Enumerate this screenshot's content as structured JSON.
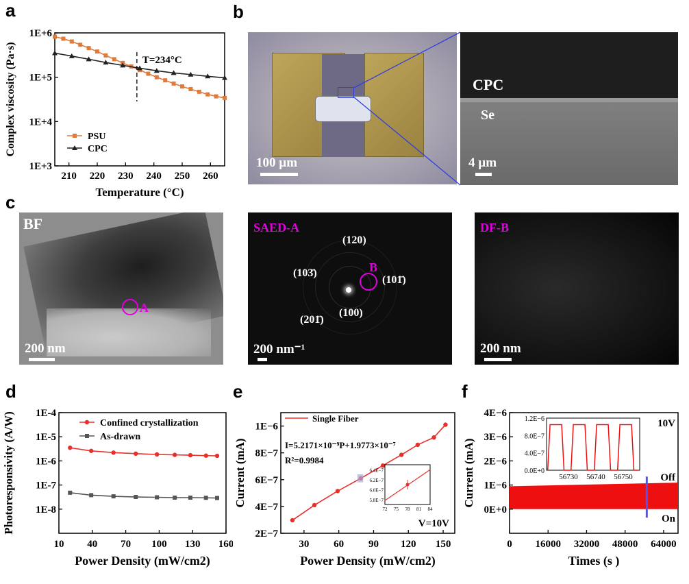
{
  "panels": {
    "a": "a",
    "b": "b",
    "c": "c",
    "d": "d",
    "e": "e",
    "f": "f"
  },
  "chart_data": [
    {
      "panel": "a",
      "type": "line",
      "xlabel": "Temperature (°C)",
      "ylabel": "Complex viscosity (Pa·s)",
      "xlim": [
        205,
        265
      ],
      "ylim_log": [
        1000,
        1000000
      ],
      "log_y": true,
      "x_ticks": [
        "210",
        "220",
        "230",
        "240",
        "250",
        "260"
      ],
      "y_ticks": [
        "1E+3",
        "1E+4",
        "1E+5",
        "1E+6"
      ],
      "annotation": "T=234°C",
      "annotation_x": 234,
      "series": [
        {
          "name": "PSU",
          "color": "#e07b3c",
          "marker": "square",
          "x": [
            205,
            208,
            211,
            214,
            217,
            220,
            223,
            226,
            229,
            232,
            235,
            238,
            241,
            244,
            247,
            250,
            253,
            256,
            259,
            262,
            265
          ],
          "y": [
            820000,
            740000,
            640000,
            540000,
            455000,
            380000,
            310000,
            255000,
            210000,
            175000,
            145000,
            120000,
            100000,
            85000,
            72000,
            62000,
            54000,
            47000,
            41000,
            37000,
            34000
          ]
        },
        {
          "name": "CPC",
          "color": "#222222",
          "marker": "triangle",
          "x": [
            205,
            211,
            217,
            223,
            229,
            235,
            241,
            247,
            253,
            259,
            265
          ],
          "y": [
            350000,
            300000,
            255000,
            215000,
            185000,
            160000,
            140000,
            125000,
            115000,
            105000,
            97000
          ]
        }
      ]
    },
    {
      "panel": "d",
      "type": "line",
      "xlabel": "Power Density (mW/cm2)",
      "ylabel": "Photoresponsivity (A/W)",
      "xlim": [
        10,
        160
      ],
      "log_y": true,
      "ylim_log": [
        1e-09,
        0.0001
      ],
      "x_ticks": [
        "10",
        "40",
        "70",
        "100",
        "130",
        "160"
      ],
      "y_ticks": [
        "1E-8",
        "1E-7",
        "1E-6",
        "1E-5",
        "1E-4"
      ],
      "series": [
        {
          "name": "Confined crystallization",
          "color": "#e8302a",
          "marker": "circle",
          "x": [
            20,
            39,
            59,
            79,
            98,
            114,
            128,
            142,
            152
          ],
          "y": [
            3.5e-06,
            2.6e-06,
            2.2e-06,
            2e-06,
            1.85e-06,
            1.78e-06,
            1.72e-06,
            1.65e-06,
            1.62e-06
          ]
        },
        {
          "name": "As-drawn",
          "color": "#555555",
          "marker": "square",
          "x": [
            20,
            39,
            59,
            79,
            98,
            114,
            128,
            142,
            152
          ],
          "y": [
            4.8e-08,
            3.8e-08,
            3.4e-08,
            3.2e-08,
            3.1e-08,
            3e-08,
            3e-08,
            2.95e-08,
            2.9e-08
          ]
        }
      ]
    },
    {
      "panel": "e",
      "type": "line",
      "xlabel": "Power Density (mW/cm2)",
      "ylabel": "Current (mA)",
      "xlim": [
        10,
        160
      ],
      "ylim": [
        2e-07,
        1.1e-06
      ],
      "x_ticks": [
        "30",
        "60",
        "90",
        "120",
        "150"
      ],
      "y_ticks": [
        "2E−7",
        "4E−7",
        "6E−7",
        "8E−7",
        "1E−6"
      ],
      "legend": "Single Fiber",
      "equation": "I=5.2171×10⁻⁹P+1.9773×10⁻⁷",
      "r2": "R²=0.9984",
      "voltage": "V=10V",
      "series": [
        {
          "name": "Single Fiber",
          "color": "#e8302a",
          "x": [
            20,
            39,
            59,
            79,
            98,
            114,
            128,
            142,
            152
          ],
          "y": [
            2.97e-07,
            4.1e-07,
            5.15e-07,
            6.1e-07,
            7.05e-07,
            7.85e-07,
            8.6e-07,
            9.15e-07,
            1.01e-06
          ]
        }
      ],
      "inset": {
        "x_ticks": [
          "72",
          "75",
          "78",
          "81",
          "84"
        ],
        "y_ticks": [
          "5.8E−7",
          "6.0E−7",
          "6.2E−7",
          "6.4E−7"
        ],
        "xlim": [
          72,
          84
        ],
        "ylim": [
          5.7e-07,
          6.5e-07
        ],
        "point": {
          "x": 78,
          "y": 6.1e-07
        }
      }
    },
    {
      "panel": "f",
      "type": "area",
      "xlabel": "Times (s )",
      "ylabel": "Current (mA)",
      "xlim": [
        0,
        70000
      ],
      "ylim": [
        -1e-06,
        4e-06
      ],
      "x_ticks": [
        "0",
        "16000",
        "32000",
        "48000",
        "64000"
      ],
      "y_ticks": [
        "0E+0",
        "1E−6",
        "2E−6",
        "3E−6",
        "4E−6"
      ],
      "voltage": "10V",
      "off_label": "Off",
      "on_label": "On",
      "band_low": 0,
      "band_high_start": 9.5e-07,
      "band_high_end": 1.1e-06,
      "marker_x": 57000,
      "inset": {
        "x_ticks": [
          "56730",
          "56740",
          "56750"
        ],
        "y_ticks": [
          "0.0E+0",
          "4.0E−7",
          "8.0E−7",
          "1.2E−6"
        ],
        "xlim": [
          56722,
          56756
        ],
        "ylim": [
          0,
          1.2e-06
        ],
        "high": 1.05e-06,
        "periods": 4
      }
    }
  ],
  "micrographs": {
    "b_left_scale": "100 µm",
    "b_right_scale": "4 µm",
    "b_right_top": "CPC",
    "b_right_bottom": "Se",
    "c1_label": "BF",
    "c1_scale": "200 nm",
    "c1_marker": "A",
    "c2_label": "SAED-A",
    "c2_scale": "200 nm⁻¹",
    "c2_marker": "B",
    "c2_indices": [
      "(120)",
      "(103̄)",
      "(101̄)",
      "(100)",
      "(201̄)"
    ],
    "c3_label": "DF-B",
    "c3_scale": "200 nm"
  }
}
